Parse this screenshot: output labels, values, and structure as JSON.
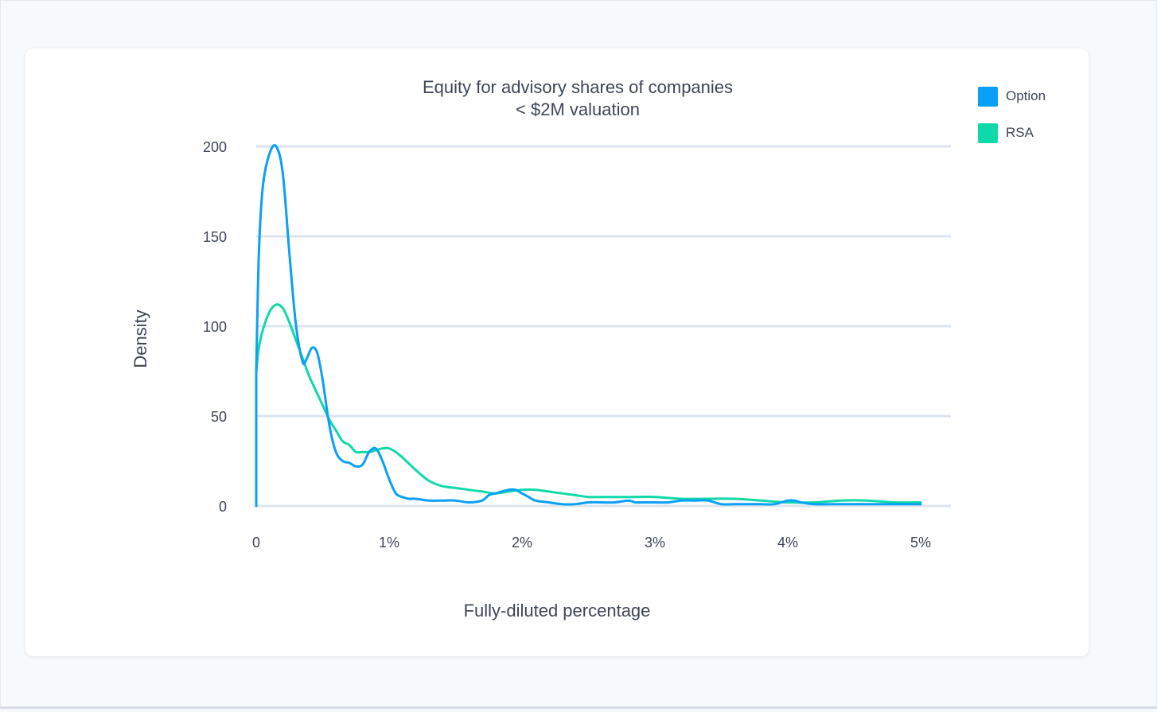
{
  "chart_data": {
    "type": "line",
    "title": "Equity for advisory shares of companies < $2M valuation",
    "xlabel": "Fully-diluted percentage",
    "ylabel": "Density",
    "xlim": [
      0,
      5
    ],
    "ylim": [
      0,
      200
    ],
    "xticks": [
      {
        "value": 0,
        "label": "0"
      },
      {
        "value": 1,
        "label": "1%"
      },
      {
        "value": 2,
        "label": "2%"
      },
      {
        "value": 3,
        "label": "3%"
      },
      {
        "value": 4,
        "label": "4%"
      },
      {
        "value": 5,
        "label": "5%"
      }
    ],
    "yticks": [
      {
        "value": 0,
        "label": "0"
      },
      {
        "value": 50,
        "label": "50"
      },
      {
        "value": 100,
        "label": "100"
      },
      {
        "value": 150,
        "label": "150"
      },
      {
        "value": 200,
        "label": "200"
      }
    ],
    "grid": true,
    "legend_position": "top-right",
    "series": [
      {
        "name": "Option",
        "color": "#0aa0f5",
        "x": [
          0,
          0.02,
          0.05,
          0.1,
          0.15,
          0.2,
          0.25,
          0.3,
          0.35,
          0.38,
          0.42,
          0.46,
          0.5,
          0.55,
          0.6,
          0.65,
          0.7,
          0.75,
          0.8,
          0.85,
          0.9,
          0.95,
          1.0,
          1.05,
          1.1,
          1.15,
          1.2,
          1.3,
          1.4,
          1.5,
          1.6,
          1.7,
          1.75,
          1.8,
          1.9,
          1.95,
          2.0,
          2.05,
          2.1,
          2.2,
          2.3,
          2.4,
          2.5,
          2.6,
          2.7,
          2.8,
          2.85,
          2.9,
          3.0,
          3.1,
          3.2,
          3.3,
          3.4,
          3.5,
          3.6,
          3.7,
          3.8,
          3.9,
          4.0,
          4.05,
          4.1,
          4.2,
          4.4,
          4.6,
          4.8,
          4.9,
          5.0
        ],
        "y": [
          75,
          140,
          178,
          196,
          200,
          185,
          140,
          100,
          80,
          82,
          88,
          85,
          70,
          45,
          30,
          25,
          24,
          22,
          23,
          30,
          32,
          25,
          15,
          7,
          5,
          4,
          4,
          3,
          3,
          3,
          2,
          3,
          6,
          7,
          9,
          9,
          7,
          5,
          3,
          2,
          1,
          1,
          2,
          2,
          2,
          3,
          2,
          2,
          2,
          2,
          3,
          3,
          3,
          1,
          1,
          1,
          1,
          1,
          3,
          3,
          2,
          1,
          1,
          1,
          1,
          1,
          1
        ]
      },
      {
        "name": "RSA",
        "color": "#0fd9a9",
        "x": [
          0,
          0.02,
          0.05,
          0.1,
          0.15,
          0.2,
          0.25,
          0.3,
          0.35,
          0.4,
          0.45,
          0.5,
          0.55,
          0.6,
          0.65,
          0.7,
          0.75,
          0.8,
          0.85,
          0.9,
          0.95,
          1.0,
          1.05,
          1.1,
          1.2,
          1.3,
          1.4,
          1.5,
          1.6,
          1.7,
          1.8,
          1.9,
          2.0,
          2.1,
          2.2,
          2.3,
          2.4,
          2.5,
          2.6,
          2.8,
          3.0,
          3.2,
          3.4,
          3.6,
          3.8,
          4.0,
          4.2,
          4.4,
          4.6,
          4.8,
          5.0
        ],
        "y": [
          75,
          88,
          98,
          108,
          112,
          110,
          102,
          92,
          82,
          72,
          64,
          56,
          48,
          42,
          36,
          34,
          30,
          30,
          30,
          31,
          32,
          32,
          30,
          27,
          20,
          14,
          11,
          10,
          9,
          8,
          7,
          8,
          9,
          9,
          8,
          7,
          6,
          5,
          5,
          5,
          5,
          4,
          4,
          4,
          3,
          2,
          2,
          3,
          3,
          2,
          2
        ]
      }
    ]
  }
}
